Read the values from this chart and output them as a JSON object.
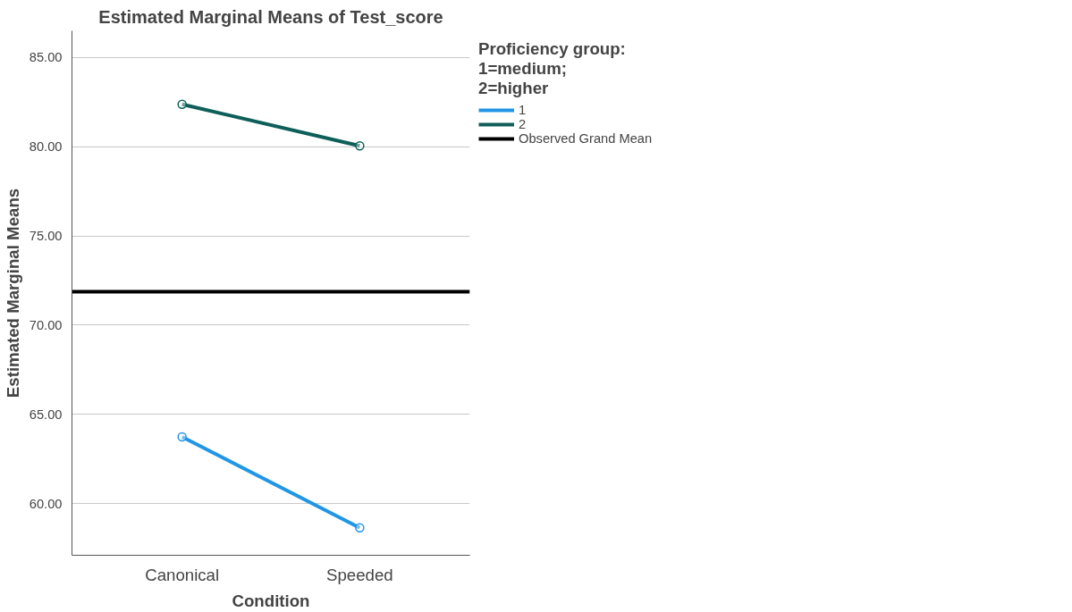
{
  "chart_data": {
    "type": "line",
    "title": "Estimated Marginal Means of Test_score",
    "xlabel": "Condition",
    "ylabel": "Estimated Marginal Means",
    "legend_title": "Proficiency group:\n1=medium;\n2=higher",
    "categories": [
      "Canonical",
      "Speeded"
    ],
    "series": [
      {
        "name": "1",
        "color": "#2196e6",
        "values": [
          63.74,
          58.64
        ]
      },
      {
        "name": "2",
        "color": "#0e5f59",
        "values": [
          82.38,
          80.05
        ]
      }
    ],
    "ref_lines": [
      {
        "axis": "y",
        "value": 71.88,
        "label": "Observed Grand Mean",
        "color": "#000000"
      }
    ],
    "ylim": [
      57.1,
      86.5
    ],
    "yticks": [
      {
        "value": 60,
        "label": "60.00"
      },
      {
        "value": 65,
        "label": "65.00"
      },
      {
        "value": 70,
        "label": "70.00"
      },
      {
        "value": 75,
        "label": "75.00"
      },
      {
        "value": 80,
        "label": "80.00"
      },
      {
        "value": 85,
        "label": "85.00"
      }
    ],
    "grid": "y",
    "legend": "top right",
    "marker": "circle",
    "line_style": "solid"
  }
}
